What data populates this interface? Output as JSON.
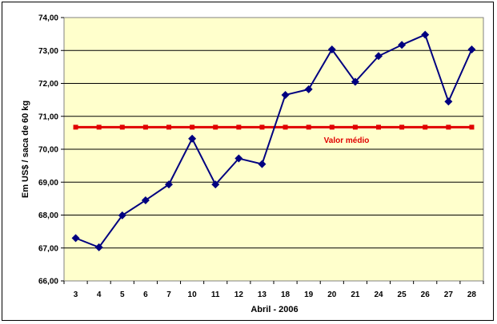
{
  "chart_data": {
    "type": "line",
    "title": "",
    "xlabel": "Abril - 2006",
    "ylabel": "Em US$ / saca de 60 kg",
    "categories": [
      "3",
      "4",
      "5",
      "6",
      "7",
      "10",
      "11",
      "12",
      "13",
      "18",
      "19",
      "20",
      "21",
      "24",
      "25",
      "26",
      "27",
      "28"
    ],
    "ylim": [
      66,
      74
    ],
    "y_ticks": [
      "66,00",
      "67,00",
      "68,00",
      "69,00",
      "70,00",
      "71,00",
      "72,00",
      "73,00",
      "74,00"
    ],
    "grid": "horizontal",
    "background": "#ffffcc",
    "series": [
      {
        "color": "#000080",
        "marker": "diamond",
        "values": [
          67.3,
          67.02,
          67.99,
          68.45,
          68.93,
          70.32,
          68.93,
          69.72,
          69.55,
          71.65,
          71.82,
          73.03,
          72.05,
          72.83,
          73.17,
          73.48,
          71.45,
          73.03
        ]
      },
      {
        "name": "Valor médio",
        "color": "#e00000",
        "marker": "square",
        "values": [
          70.67,
          70.67,
          70.67,
          70.67,
          70.67,
          70.67,
          70.67,
          70.67,
          70.67,
          70.67,
          70.67,
          70.67,
          70.67,
          70.67,
          70.67,
          70.67,
          70.67,
          70.67
        ]
      }
    ]
  }
}
